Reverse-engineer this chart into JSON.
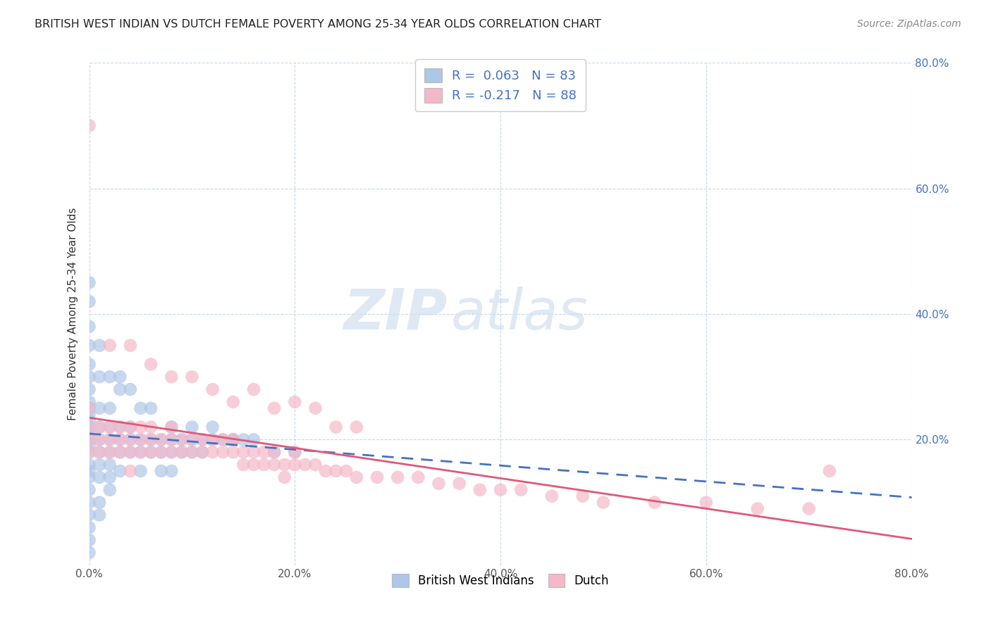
{
  "title": "BRITISH WEST INDIAN VS DUTCH FEMALE POVERTY AMONG 25-34 YEAR OLDS CORRELATION CHART",
  "source": "Source: ZipAtlas.com",
  "ylabel": "Female Poverty Among 25-34 Year Olds",
  "xlim": [
    0.0,
    0.8
  ],
  "ylim": [
    0.0,
    0.8
  ],
  "xtick_vals": [
    0.0,
    0.2,
    0.4,
    0.6,
    0.8
  ],
  "ytick_vals": [
    0.2,
    0.4,
    0.6,
    0.8
  ],
  "bwi_color": "#aec6e8",
  "dutch_color": "#f4b8c8",
  "bwi_line_color": "#4472C4",
  "dutch_line_color": "#e05878",
  "bwi_R": 0.063,
  "bwi_N": 83,
  "dutch_R": -0.217,
  "dutch_N": 88,
  "watermark_zip": "ZIP",
  "watermark_atlas": "atlas",
  "background_color": "#ffffff",
  "grid_color": "#c8d8e8",
  "right_tick_color": "#4472C4",
  "legend_color": "#4472C4",
  "bwi_x": [
    0.0,
    0.0,
    0.0,
    0.0,
    0.0,
    0.0,
    0.0,
    0.0,
    0.0,
    0.0,
    0.0,
    0.0,
    0.0,
    0.0,
    0.0,
    0.0,
    0.0,
    0.0,
    0.0,
    0.0,
    0.0,
    0.0,
    0.01,
    0.01,
    0.01,
    0.01,
    0.01,
    0.01,
    0.01,
    0.01,
    0.02,
    0.02,
    0.02,
    0.02,
    0.02,
    0.02,
    0.02,
    0.03,
    0.03,
    0.03,
    0.03,
    0.04,
    0.04,
    0.04,
    0.05,
    0.05,
    0.05,
    0.06,
    0.06,
    0.07,
    0.07,
    0.07,
    0.08,
    0.08,
    0.08,
    0.09,
    0.09,
    0.1,
    0.1,
    0.11,
    0.11,
    0.12,
    0.13,
    0.14,
    0.15,
    0.0,
    0.0,
    0.0,
    0.01,
    0.01,
    0.02,
    0.03,
    0.03,
    0.04,
    0.05,
    0.06,
    0.08,
    0.1,
    0.12,
    0.14,
    0.16,
    0.18,
    0.2
  ],
  "bwi_y": [
    0.18,
    0.2,
    0.22,
    0.16,
    0.14,
    0.12,
    0.24,
    0.26,
    0.28,
    0.3,
    0.32,
    0.08,
    0.1,
    0.15,
    0.19,
    0.21,
    0.23,
    0.25,
    0.06,
    0.04,
    0.02,
    0.38,
    0.2,
    0.18,
    0.16,
    0.22,
    0.14,
    0.1,
    0.25,
    0.08,
    0.2,
    0.18,
    0.22,
    0.16,
    0.12,
    0.25,
    0.14,
    0.2,
    0.18,
    0.22,
    0.15,
    0.2,
    0.18,
    0.22,
    0.2,
    0.18,
    0.15,
    0.2,
    0.18,
    0.2,
    0.18,
    0.15,
    0.2,
    0.18,
    0.15,
    0.2,
    0.18,
    0.2,
    0.18,
    0.2,
    0.18,
    0.2,
    0.2,
    0.2,
    0.2,
    0.42,
    0.35,
    0.45,
    0.35,
    0.3,
    0.3,
    0.3,
    0.28,
    0.28,
    0.25,
    0.25,
    0.22,
    0.22,
    0.22,
    0.2,
    0.2,
    0.18,
    0.18
  ],
  "dutch_x": [
    0.0,
    0.0,
    0.0,
    0.0,
    0.01,
    0.01,
    0.01,
    0.02,
    0.02,
    0.02,
    0.03,
    0.03,
    0.03,
    0.04,
    0.04,
    0.04,
    0.04,
    0.05,
    0.05,
    0.05,
    0.06,
    0.06,
    0.06,
    0.07,
    0.07,
    0.08,
    0.08,
    0.08,
    0.09,
    0.09,
    0.1,
    0.1,
    0.11,
    0.11,
    0.12,
    0.12,
    0.13,
    0.13,
    0.14,
    0.14,
    0.15,
    0.15,
    0.16,
    0.16,
    0.17,
    0.17,
    0.18,
    0.18,
    0.19,
    0.19,
    0.2,
    0.2,
    0.21,
    0.22,
    0.23,
    0.24,
    0.25,
    0.26,
    0.28,
    0.3,
    0.32,
    0.34,
    0.36,
    0.38,
    0.4,
    0.42,
    0.45,
    0.48,
    0.5,
    0.55,
    0.6,
    0.65,
    0.7,
    0.72,
    0.0,
    0.02,
    0.04,
    0.06,
    0.08,
    0.1,
    0.12,
    0.14,
    0.16,
    0.18,
    0.2,
    0.22,
    0.24,
    0.26
  ],
  "dutch_y": [
    0.22,
    0.2,
    0.18,
    0.25,
    0.22,
    0.2,
    0.18,
    0.22,
    0.2,
    0.18,
    0.22,
    0.2,
    0.18,
    0.22,
    0.2,
    0.18,
    0.15,
    0.22,
    0.2,
    0.18,
    0.22,
    0.2,
    0.18,
    0.2,
    0.18,
    0.22,
    0.2,
    0.18,
    0.2,
    0.18,
    0.2,
    0.18,
    0.2,
    0.18,
    0.2,
    0.18,
    0.2,
    0.18,
    0.2,
    0.18,
    0.18,
    0.16,
    0.18,
    0.16,
    0.18,
    0.16,
    0.18,
    0.16,
    0.16,
    0.14,
    0.18,
    0.16,
    0.16,
    0.16,
    0.15,
    0.15,
    0.15,
    0.14,
    0.14,
    0.14,
    0.14,
    0.13,
    0.13,
    0.12,
    0.12,
    0.12,
    0.11,
    0.11,
    0.1,
    0.1,
    0.1,
    0.09,
    0.09,
    0.15,
    0.7,
    0.35,
    0.35,
    0.32,
    0.3,
    0.3,
    0.28,
    0.26,
    0.28,
    0.25,
    0.26,
    0.25,
    0.22,
    0.22
  ]
}
